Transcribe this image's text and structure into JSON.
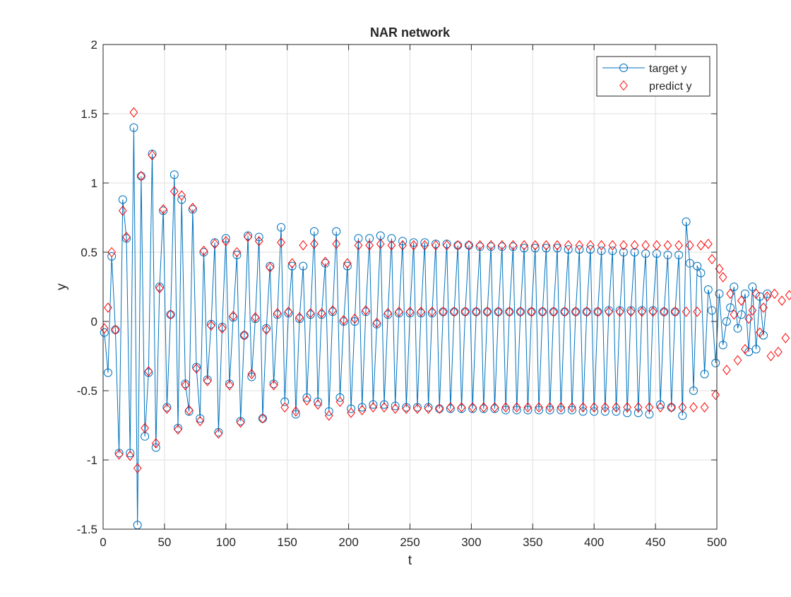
{
  "chart_data": {
    "type": "line",
    "title": "NAR network",
    "xlabel": "t",
    "ylabel": "y",
    "xlim": [
      0,
      500
    ],
    "ylim": [
      -1.5,
      2
    ],
    "x_ticks": [
      0,
      50,
      100,
      150,
      200,
      250,
      300,
      350,
      400,
      450,
      500
    ],
    "y_ticks": [
      -1.5,
      -1,
      -0.5,
      0,
      0.5,
      1,
      1.5,
      2
    ],
    "x_tick_labels": [
      "0",
      "50",
      "100",
      "150",
      "200",
      "250",
      "300",
      "350",
      "400",
      "450",
      "500"
    ],
    "y_tick_labels": [
      "-1.5",
      "-1",
      "-0.5",
      "0",
      "0.5",
      "1",
      "1.5",
      "2"
    ],
    "grid": true,
    "legend_position": "top-right",
    "x_start": 1,
    "x_step": 3,
    "series": [
      {
        "name": "target y",
        "marker": "circle",
        "line": true,
        "color": "#0072BD",
        "values": [
          -0.08,
          -0.37,
          0.47,
          -0.06,
          -0.95,
          0.88,
          0.6,
          -0.95,
          1.4,
          -1.47,
          1.05,
          -0.83,
          -0.37,
          1.21,
          -0.91,
          0.25,
          0.8,
          -0.62,
          0.05,
          1.06,
          -0.77,
          0.88,
          -0.45,
          -0.65,
          0.81,
          -0.33,
          -0.7,
          0.5,
          -0.42,
          -0.02,
          0.57,
          -0.8,
          -0.04,
          0.6,
          -0.45,
          0.03,
          0.48,
          -0.72,
          -0.1,
          0.62,
          -0.4,
          0.02,
          0.61,
          -0.7,
          -0.05,
          0.4,
          -0.45,
          0.05,
          0.68,
          -0.58,
          0.06,
          0.4,
          -0.67,
          0.02,
          0.4,
          -0.55,
          0.05,
          0.65,
          -0.58,
          0.05,
          0.42,
          -0.65,
          0.07,
          0.65,
          -0.55,
          0.0,
          0.4,
          -0.63,
          0.0,
          0.6,
          -0.62,
          0.07,
          0.6,
          -0.6,
          -0.02,
          0.62,
          -0.6,
          0.05,
          0.6,
          -0.61,
          0.06,
          0.58,
          -0.62,
          0.06,
          0.57,
          -0.62,
          0.06,
          0.57,
          -0.62,
          0.06,
          0.56,
          -0.63,
          0.07,
          0.56,
          -0.63,
          0.07,
          0.55,
          -0.63,
          0.07,
          0.55,
          -0.63,
          0.07,
          0.54,
          -0.63,
          0.07,
          0.54,
          -0.63,
          0.07,
          0.54,
          -0.64,
          0.07,
          0.54,
          -0.64,
          0.07,
          0.53,
          -0.64,
          0.07,
          0.53,
          -0.64,
          0.07,
          0.53,
          -0.64,
          0.07,
          0.53,
          -0.64,
          0.07,
          0.52,
          -0.64,
          0.07,
          0.52,
          -0.65,
          0.07,
          0.52,
          -0.65,
          0.07,
          0.51,
          -0.65,
          0.08,
          0.51,
          -0.65,
          0.08,
          0.5,
          -0.66,
          0.08,
          0.5,
          -0.66,
          0.08,
          0.49,
          -0.67,
          0.08,
          0.49,
          -0.6,
          0.07,
          0.48,
          -0.62,
          0.07,
          0.48,
          -0.68,
          0.72,
          0.42,
          -0.5,
          0.4,
          0.35,
          -0.38,
          0.23,
          0.08,
          -0.3,
          0.2,
          -0.17,
          0.0,
          0.1,
          0.25,
          -0.05,
          0.05,
          0.2,
          -0.22,
          0.25,
          -0.2,
          0.18,
          -0.1,
          0.2
        ]
      },
      {
        "name": "predict y",
        "marker": "diamond",
        "line": false,
        "color": "#FF0000",
        "values": [
          -0.05,
          0.1,
          0.5,
          -0.06,
          -0.96,
          0.8,
          0.61,
          -0.97,
          1.51,
          -1.06,
          1.05,
          -0.77,
          -0.36,
          1.2,
          -0.88,
          0.24,
          0.81,
          -0.63,
          0.05,
          0.94,
          -0.78,
          0.91,
          -0.46,
          -0.64,
          0.82,
          -0.34,
          -0.72,
          0.51,
          -0.43,
          -0.03,
          0.56,
          -0.81,
          -0.05,
          0.58,
          -0.46,
          0.04,
          0.5,
          -0.73,
          -0.1,
          0.61,
          -0.38,
          0.03,
          0.58,
          -0.7,
          -0.06,
          0.39,
          -0.46,
          0.06,
          0.57,
          -0.62,
          0.07,
          0.42,
          -0.65,
          0.03,
          0.55,
          -0.57,
          0.06,
          0.56,
          -0.6,
          0.06,
          0.43,
          -0.68,
          0.08,
          0.56,
          -0.58,
          0.01,
          0.42,
          -0.66,
          0.02,
          0.55,
          -0.64,
          0.08,
          0.55,
          -0.62,
          -0.01,
          0.56,
          -0.62,
          0.06,
          0.55,
          -0.63,
          0.07,
          0.55,
          -0.63,
          0.07,
          0.55,
          -0.63,
          0.07,
          0.55,
          -0.63,
          0.07,
          0.55,
          -0.63,
          0.07,
          0.55,
          -0.62,
          0.07,
          0.55,
          -0.62,
          0.07,
          0.55,
          -0.62,
          0.07,
          0.55,
          -0.62,
          0.07,
          0.55,
          -0.62,
          0.07,
          0.55,
          -0.62,
          0.07,
          0.55,
          -0.62,
          0.07,
          0.55,
          -0.62,
          0.07,
          0.55,
          -0.62,
          0.07,
          0.55,
          -0.62,
          0.07,
          0.55,
          -0.62,
          0.07,
          0.55,
          -0.62,
          0.07,
          0.55,
          -0.62,
          0.07,
          0.55,
          -0.62,
          0.07,
          0.55,
          -0.62,
          0.07,
          0.55,
          -0.62,
          0.07,
          0.55,
          -0.62,
          0.07,
          0.55,
          -0.62,
          0.07,
          0.55,
          -0.62,
          0.07,
          0.55,
          -0.62,
          0.07,
          0.55,
          -0.62,
          0.07,
          0.55,
          -0.62,
          0.07,
          0.55,
          -0.62,
          0.07,
          0.55,
          -0.62,
          0.56,
          0.45,
          -0.53,
          0.38,
          0.32,
          -0.35,
          0.2,
          0.05,
          -0.28,
          0.15,
          -0.2,
          0.02,
          0.08,
          0.2,
          -0.08,
          0.1,
          0.18,
          -0.25,
          0.2,
          -0.22,
          0.15,
          -0.12,
          0.19
        ]
      }
    ]
  }
}
